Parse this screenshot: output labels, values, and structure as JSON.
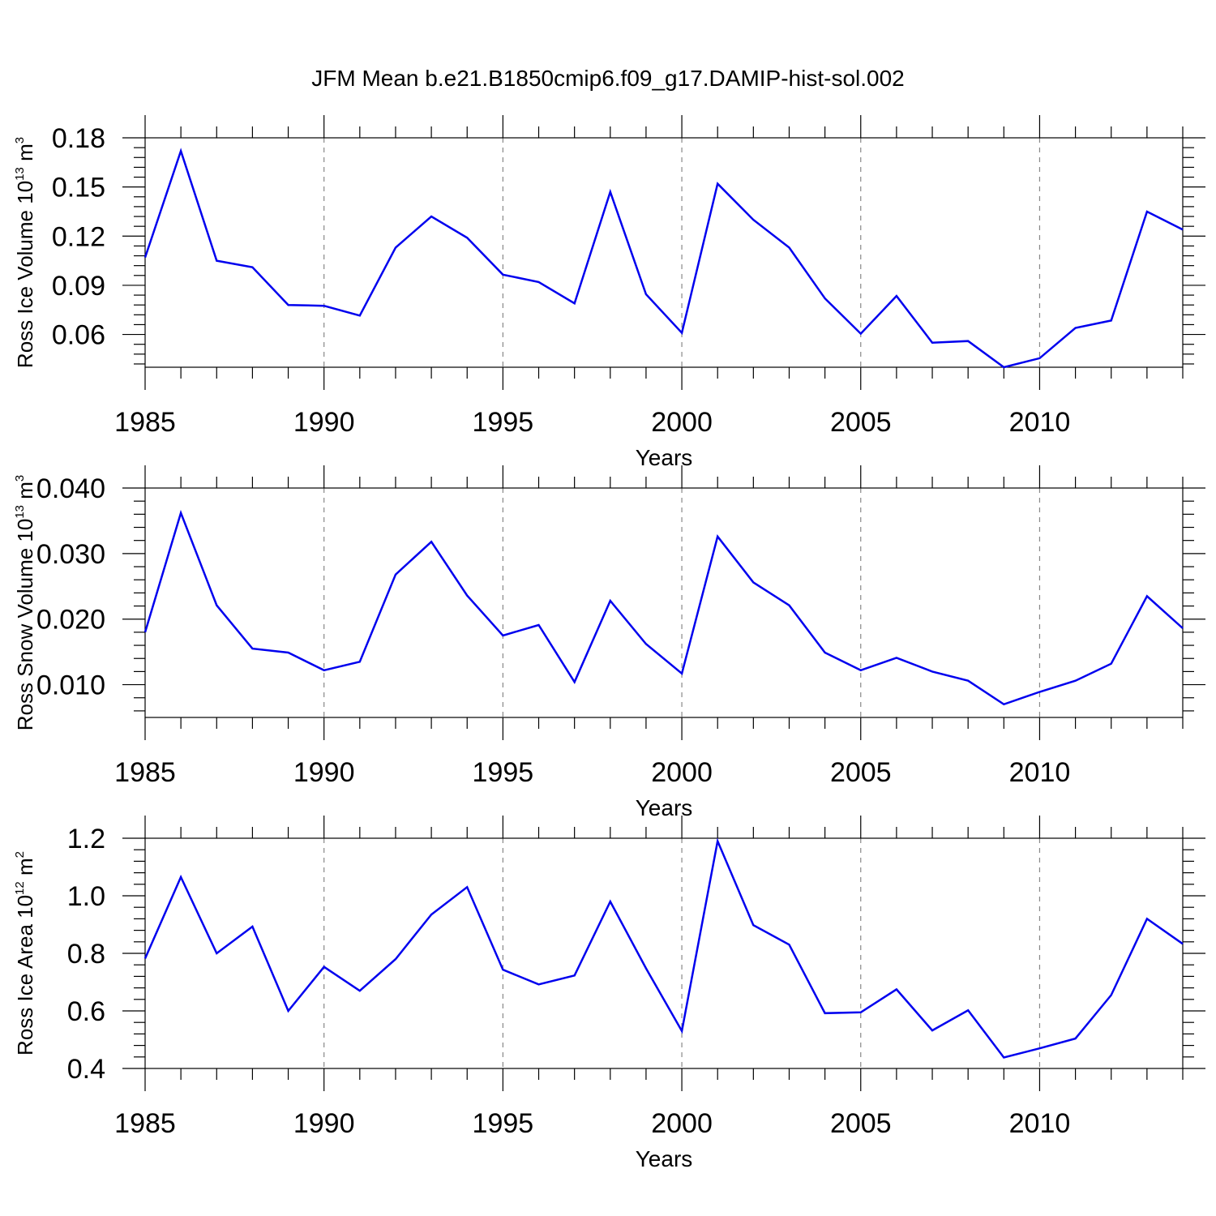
{
  "chart_data": {
    "title": "JFM Mean b.e21.B1850cmip6.f09_g17.DAMIP-hist-sol.002",
    "series_color": "#0000ee",
    "panels": [
      {
        "type": "line",
        "ylabel": "Ross Ice Volume 10",
        "ylabel_exp": "13",
        "ylabel_unit": " m",
        "ylabel_unit_exp": "3",
        "xlabel": "Years",
        "ylim": [
          0.04,
          0.18
        ],
        "yticks": [
          "0.06",
          "0.09",
          "0.12",
          "0.15",
          "0.18"
        ],
        "xticks": [
          "1985",
          "1990",
          "1995",
          "2000",
          "2005",
          "2010"
        ],
        "x": [
          1985,
          1986,
          1987,
          1988,
          1989,
          1990,
          1991,
          1992,
          1993,
          1994,
          1995,
          1996,
          1997,
          1998,
          1999,
          2000,
          2001,
          2002,
          2003,
          2004,
          2005,
          2006,
          2007,
          2008,
          2009,
          2010,
          2011,
          2012,
          2013,
          2014
        ],
        "values": [
          0.107,
          0.172,
          0.105,
          0.101,
          0.078,
          0.0775,
          0.0715,
          0.113,
          0.132,
          0.119,
          0.0965,
          0.092,
          0.079,
          0.147,
          0.0845,
          0.061,
          0.152,
          0.13,
          0.113,
          0.082,
          0.0605,
          0.0835,
          0.055,
          0.056,
          0.04,
          0.0455,
          0.064,
          0.0685,
          0.135,
          0.124
        ]
      },
      {
        "type": "line",
        "ylabel": "Ross Snow Volume 10",
        "ylabel_exp": "13",
        "ylabel_unit": " m",
        "ylabel_unit_exp": "3",
        "xlabel": "Years",
        "ylim": [
          0.005,
          0.04
        ],
        "yticks": [
          "0.010",
          "0.020",
          "0.030",
          "0.040"
        ],
        "xticks": [
          "1985",
          "1990",
          "1995",
          "2000",
          "2005",
          "2010"
        ],
        "x": [
          1985,
          1986,
          1987,
          1988,
          1989,
          1990,
          1991,
          1992,
          1993,
          1994,
          1995,
          1996,
          1997,
          1998,
          1999,
          2000,
          2001,
          2002,
          2003,
          2004,
          2005,
          2006,
          2007,
          2008,
          2009,
          2010,
          2011,
          2012,
          2013,
          2014
        ],
        "values": [
          0.018,
          0.0362,
          0.0221,
          0.0155,
          0.0149,
          0.0122,
          0.0135,
          0.0268,
          0.0318,
          0.0236,
          0.0175,
          0.0191,
          0.0104,
          0.0228,
          0.0162,
          0.0117,
          0.0326,
          0.0256,
          0.0221,
          0.0149,
          0.0122,
          0.0141,
          0.012,
          0.0106,
          0.007,
          0.0089,
          0.0106,
          0.0132,
          0.0235,
          0.0186
        ]
      },
      {
        "type": "line",
        "ylabel": "Ross Ice Area 10",
        "ylabel_exp": "12",
        "ylabel_unit": " m",
        "ylabel_unit_exp": "2",
        "xlabel": "Years",
        "ylim": [
          0.4,
          1.2
        ],
        "yticks": [
          "0.4",
          "0.6",
          "0.8",
          "1.0",
          "1.2"
        ],
        "xticks": [
          "1985",
          "1990",
          "1995",
          "2000",
          "2005",
          "2010"
        ],
        "x": [
          1985,
          1986,
          1987,
          1988,
          1989,
          1990,
          1991,
          1992,
          1993,
          1994,
          1995,
          1996,
          1997,
          1998,
          1999,
          2000,
          2001,
          2002,
          2003,
          2004,
          2005,
          2006,
          2007,
          2008,
          2009,
          2010,
          2011,
          2012,
          2013,
          2014
        ],
        "values": [
          0.782,
          1.065,
          0.8,
          0.893,
          0.6,
          0.753,
          0.67,
          0.78,
          0.935,
          1.03,
          0.743,
          0.692,
          0.723,
          0.98,
          0.748,
          0.53,
          1.19,
          0.898,
          0.83,
          0.592,
          0.595,
          0.675,
          0.532,
          0.602,
          0.438,
          0.47,
          0.504,
          0.655,
          0.92,
          0.833
        ]
      }
    ]
  }
}
